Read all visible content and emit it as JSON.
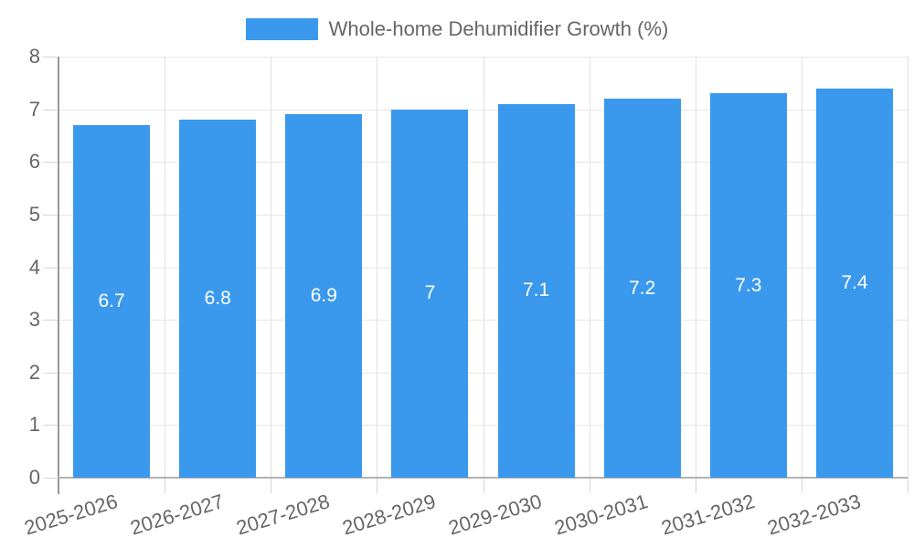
{
  "legend": {
    "series_label": "Whole-home Dehumidifier Growth (%)"
  },
  "chart_data": {
    "type": "bar",
    "title": "",
    "categories": [
      "2025-2026",
      "2026-2027",
      "2027-2028",
      "2028-2029",
      "2029-2030",
      "2030-2031",
      "2031-2032",
      "2032-2033"
    ],
    "series": [
      {
        "name": "Whole-home Dehumidifier Growth (%)",
        "values": [
          6.7,
          6.8,
          6.9,
          7,
          7.1,
          7.2,
          7.3,
          7.4
        ]
      }
    ],
    "bar_labels": [
      "6.7",
      "6.8",
      "6.9",
      "7",
      "7.1",
      "7.2",
      "7.3",
      "7.4"
    ],
    "xlabel": "",
    "ylabel": "",
    "ylim": [
      0,
      8
    ],
    "y_ticks": [
      0,
      1,
      2,
      3,
      4,
      5,
      6,
      7,
      8
    ],
    "grid": true,
    "legend_position": "top",
    "x_tick_rotation_deg": -17,
    "colors": {
      "bar": "#3A99EC",
      "bar_label": "#FFFFFF",
      "axis_text": "#666666",
      "legend_text": "#666666",
      "y_axis_line": "#999999",
      "x_axis_line": "#B3B3B3",
      "h_gridline": "#E6E6E6",
      "v_gridline": "#E0E0E0",
      "tick": "#D6D6D6",
      "background": "#FFFFFF"
    }
  }
}
